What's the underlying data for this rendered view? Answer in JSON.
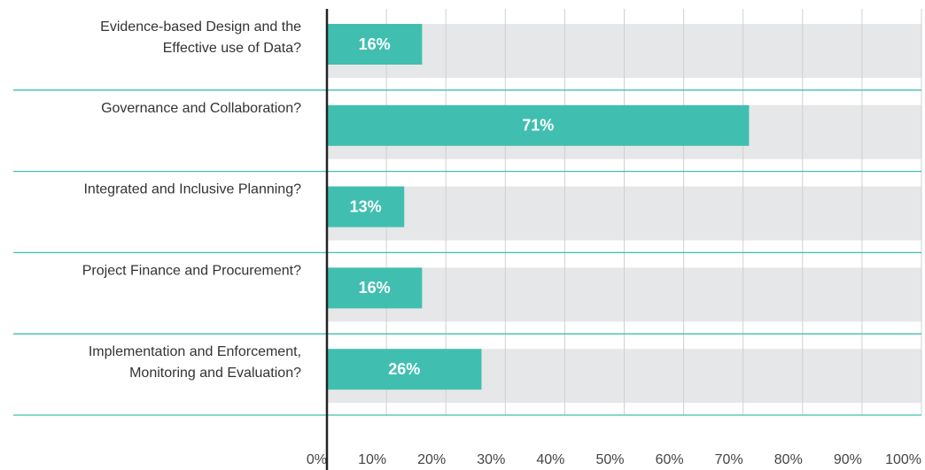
{
  "chart_data": {
    "type": "bar",
    "orientation": "horizontal",
    "categories": [
      [
        "Evidence-based Design and the",
        "Effective use of Data?"
      ],
      [
        "Governance and Collaboration?"
      ],
      [
        "Integrated and Inclusive Planning?"
      ],
      [
        "Project Finance and Procurement?"
      ],
      [
        "Implementation and Enforcement,",
        "Monitoring and Evaluation?"
      ]
    ],
    "values": [
      16,
      71,
      13,
      16,
      26
    ],
    "value_labels": [
      "16%",
      "71%",
      "13%",
      "16%",
      "26%"
    ],
    "color": "#40bfb0",
    "xlim": [
      0,
      100
    ],
    "xticks": [
      {
        "value": 0,
        "label": "0%"
      },
      {
        "value": 10,
        "label": "10%"
      },
      {
        "value": 20,
        "label": "20%"
      },
      {
        "value": 30,
        "label": "30%"
      },
      {
        "value": 40,
        "label": "40%"
      },
      {
        "value": 50,
        "label": "50%"
      },
      {
        "value": 60,
        "label": "60%"
      },
      {
        "value": 70,
        "label": "70%"
      },
      {
        "value": 80,
        "label": "80%"
      },
      {
        "value": 90,
        "label": "90%"
      },
      {
        "value": 100,
        "label": "100%"
      }
    ],
    "grid": true
  }
}
